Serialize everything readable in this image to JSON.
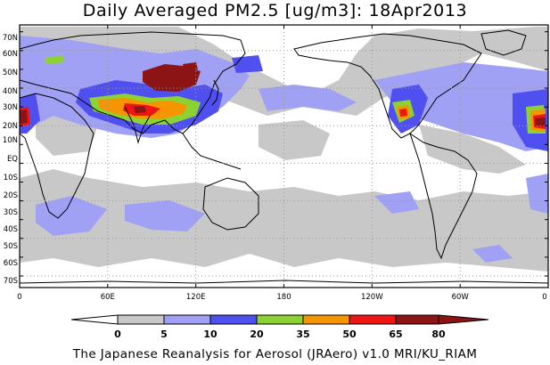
{
  "title": "Daily Averaged PM2.5 [ug/m3]: 18Apr2013",
  "footer": "The Japanese Reanalysis for Aerosol (JRAero) v1.0 MRI/KU_RIAM",
  "axes": {
    "lat_labels": [
      "70N",
      "60N",
      "50N",
      "40N",
      "30N",
      "20N",
      "10N",
      "EQ",
      "10S",
      "20S",
      "30S",
      "40S",
      "50S",
      "60S",
      "70S"
    ],
    "lon_labels": [
      "0",
      "60E",
      "120E",
      "180",
      "120W",
      "60W",
      "0"
    ]
  },
  "colorbar": {
    "ticks": [
      "0",
      "5",
      "10",
      "20",
      "35",
      "50",
      "65",
      "80"
    ],
    "colors": [
      "#ffffff",
      "#c8c8c8",
      "#a0a0f5",
      "#5050f0",
      "#8cd232",
      "#f59600",
      "#f01414",
      "#8c1414"
    ]
  },
  "colors": {
    "frame": "#000000",
    "grid": "#999999",
    "coast": "#000000"
  }
}
